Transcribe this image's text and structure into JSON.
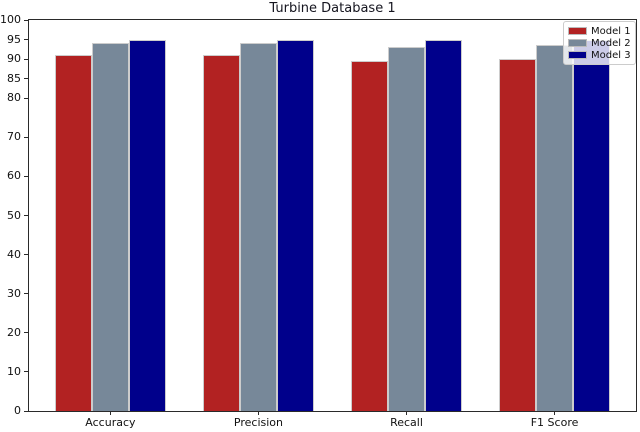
{
  "chart_data": {
    "type": "bar",
    "title": "Turbine Database 1",
    "categories": [
      "Accuracy",
      "Precision",
      "Recall",
      "F1 Score"
    ],
    "series": [
      {
        "name": "Model 1",
        "color": "#b22222",
        "values": [
          91,
          91,
          89.5,
          90
        ]
      },
      {
        "name": "Model 2",
        "color": "#778899",
        "values": [
          94,
          94,
          93,
          93.5
        ]
      },
      {
        "name": "Model 3",
        "color": "#00008b",
        "values": [
          95,
          95,
          95,
          95
        ]
      }
    ],
    "xlabel": "",
    "ylabel": "",
    "ylim": [
      0,
      100
    ],
    "yticks": [
      0,
      10,
      20,
      30,
      40,
      50,
      60,
      70,
      80,
      85,
      90,
      95,
      100
    ],
    "grid": false,
    "legend_position": "upper right",
    "bar_edge_color": "#cccccc",
    "background_color": "#ffffff",
    "spine_color": "#2a2a2a"
  }
}
